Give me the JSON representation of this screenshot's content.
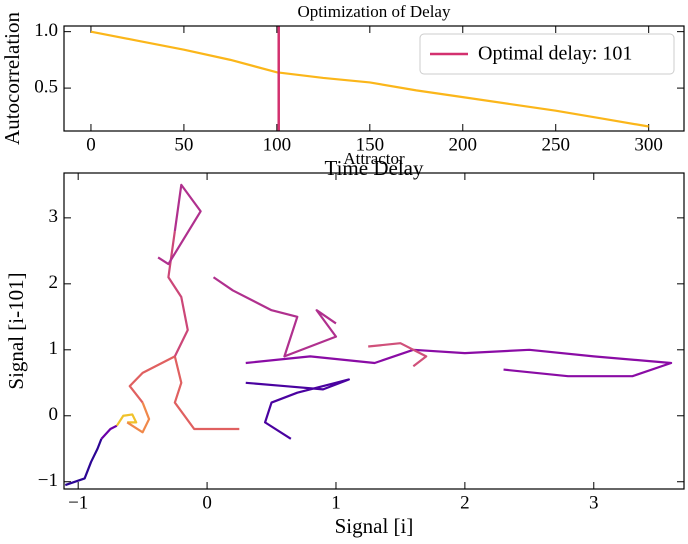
{
  "chart_data": [
    {
      "type": "line",
      "title": "Optimization of Delay",
      "x_label": "Time Delay",
      "y_label": "Autocorrelation",
      "series": [
        {
          "color": "#fbb61a",
          "x": [
            0,
            25,
            50,
            75,
            100,
            125,
            150,
            175,
            200,
            225,
            250,
            275,
            300
          ],
          "values": [
            1.0,
            0.92,
            0.84,
            0.75,
            0.64,
            0.59,
            0.55,
            0.48,
            0.42,
            0.36,
            0.3,
            0.23,
            0.16
          ]
        }
      ],
      "vline": {
        "name": "Optimal delay: 101",
        "x": 101,
        "color": "#d3306f"
      },
      "xlim": [
        -14.5,
        319
      ],
      "ylim": [
        0.12,
        1.05
      ],
      "xticks": [
        0,
        50,
        100,
        150,
        200,
        250,
        300
      ],
      "yticks": [
        0.5,
        {
          "value": 1,
          "label": "1.0"
        }
      ],
      "legend": "upper right"
    },
    {
      "type": "line",
      "title": "Attractor",
      "x_label": "Signal [i]",
      "y_label": "Signal [i-101]",
      "series": [
        {
          "color": "#2c0594",
          "x": [
            -1.1,
            -0.95,
            -0.9,
            -0.85,
            -0.82
          ],
          "values": [
            -1.05,
            -0.95,
            -0.7,
            -0.5,
            -0.35
          ]
        },
        {
          "color": "#6a00a8",
          "x": [
            -0.82,
            -0.75,
            -0.7
          ],
          "values": [
            -0.35,
            -0.2,
            -0.15
          ]
        },
        {
          "color": "#f0c22a",
          "x": [
            -0.7,
            -0.65,
            -0.58,
            -0.55,
            -0.62
          ],
          "values": [
            -0.15,
            0,
            0.02,
            -0.1,
            -0.1
          ]
        },
        {
          "color": "#f0884a",
          "x": [
            -0.62,
            -0.5,
            -0.45,
            -0.5
          ],
          "values": [
            -0.1,
            -0.25,
            -0.05,
            0.2
          ]
        },
        {
          "color": "#e06060",
          "x": [
            -0.5,
            -0.6,
            -0.5,
            -0.25,
            -0.2,
            -0.25,
            -0.1,
            0.25
          ],
          "values": [
            0.2,
            0.45,
            0.65,
            0.9,
            0.5,
            0.2,
            -0.2,
            -0.2
          ]
        },
        {
          "color": "#cc4778",
          "x": [
            -0.25,
            -0.15,
            -0.2,
            -0.3,
            -0.25
          ],
          "values": [
            0.9,
            1.3,
            1.8,
            2.1,
            2.8
          ]
        },
        {
          "color": "#b0308e",
          "x": [
            -0.25,
            -0.2,
            -0.05,
            -0.3,
            -0.38
          ],
          "values": [
            2.8,
            3.5,
            3.1,
            2.3,
            2.4
          ]
        },
        {
          "color": "#b0308e",
          "x": [
            0.05,
            0.2,
            0.5,
            0.7,
            0.6,
            1.0,
            0.85,
            1.0
          ],
          "values": [
            2.1,
            1.9,
            1.6,
            1.5,
            0.9,
            1.2,
            1.6,
            1.4
          ]
        },
        {
          "color": "#8a0ca5",
          "x": [
            0.3,
            0.8,
            1.3,
            1.6,
            2.0,
            2.5,
            3.0,
            3.6,
            3.3,
            2.8,
            2.3
          ],
          "values": [
            0.8,
            0.9,
            0.8,
            1.0,
            0.95,
            1.0,
            0.9,
            0.8,
            0.6,
            0.6,
            0.7
          ]
        },
        {
          "color": "#d0507a",
          "x": [
            1.25,
            1.5,
            1.7,
            1.6
          ],
          "values": [
            1.05,
            1.1,
            0.9,
            0.75
          ]
        },
        {
          "color": "#4a02a0",
          "x": [
            0.3,
            0.6,
            0.9,
            1.1,
            0.7,
            0.5,
            0.45,
            0.65
          ],
          "values": [
            0.5,
            0.45,
            0.4,
            0.55,
            0.35,
            0.2,
            -0.1,
            -0.35
          ]
        }
      ],
      "xlim": [
        -1.11,
        3.7
      ],
      "ylim": [
        -1.11,
        3.68
      ],
      "xticks": [
        {
          "value": -1,
          "label": "−1"
        },
        0,
        1,
        2,
        3
      ],
      "yticks": [
        {
          "value": -1,
          "label": "−1"
        },
        0,
        1,
        2,
        3
      ]
    }
  ]
}
